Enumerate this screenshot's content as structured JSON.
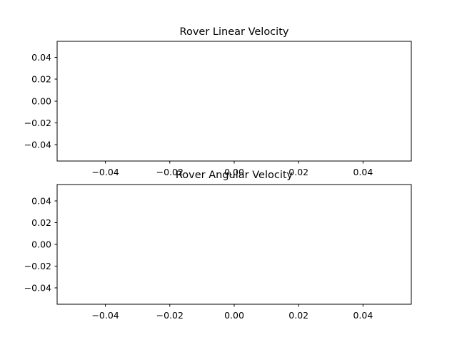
{
  "chart_data": [
    {
      "type": "line",
      "title": "Rover Linear Velocity",
      "xlabel": "",
      "ylabel": "",
      "xlim": [
        -0.055,
        0.055
      ],
      "ylim": [
        -0.055,
        0.055
      ],
      "x_ticks": [
        "−0.04",
        "−0.02",
        "0.00",
        "0.02",
        "0.04"
      ],
      "y_ticks": [
        "0.04",
        "0.02",
        "0.00",
        "−0.02",
        "−0.04"
      ],
      "series": [],
      "grid": false,
      "legend": "none"
    },
    {
      "type": "line",
      "title": "Rover Angular Velocity",
      "xlabel": "",
      "ylabel": "",
      "xlim": [
        -0.055,
        0.055
      ],
      "ylim": [
        -0.055,
        0.055
      ],
      "x_ticks": [
        "−0.04",
        "−0.02",
        "0.00",
        "0.02",
        "0.04"
      ],
      "y_ticks": [
        "0.04",
        "0.02",
        "0.00",
        "−0.02",
        "−0.04"
      ],
      "series": [],
      "grid": false,
      "legend": "none"
    }
  ],
  "colors": {
    "axes": "#000000",
    "background": "#ffffff",
    "text": "#000000"
  }
}
